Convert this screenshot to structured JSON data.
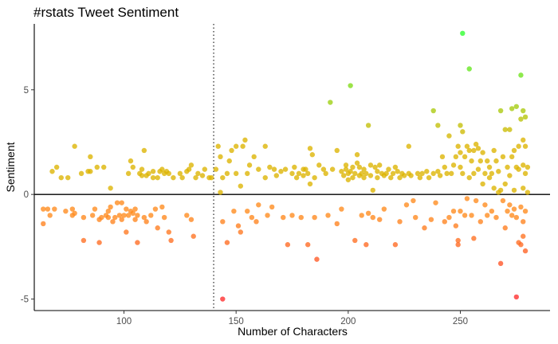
{
  "chart_data": {
    "type": "scatter",
    "title": "#rstats Tweet Sentiment",
    "xlabel": "Number of Characters",
    "ylabel": "Sentiment",
    "xlim": [
      60,
      290
    ],
    "ylim": [
      -5.55,
      8.15
    ],
    "x_ticks": [
      {
        "value": 100,
        "label": "100"
      },
      {
        "value": 150,
        "label": "150"
      },
      {
        "value": 200,
        "label": "200"
      },
      {
        "value": 250,
        "label": "250"
      }
    ],
    "y_ticks": [
      {
        "value": -5,
        "label": "-5"
      },
      {
        "value": 0,
        "label": "0"
      },
      {
        "value": 5,
        "label": "5"
      }
    ],
    "grid": false,
    "legend": "none",
    "reference_lines": {
      "horizontal_solid_y": 0,
      "vertical_dotted_x": 140
    },
    "color_scale": {
      "low": "#ff2b2b",
      "low_mid": "#ff8a1c",
      "mid": "#dcb400",
      "high": "#6fdb00",
      "top": "#2bff2b",
      "opacity": 0.78
    },
    "points": [
      [
        64,
        -1.4
      ],
      [
        64,
        -0.7
      ],
      [
        66,
        -0.7
      ],
      [
        67,
        -1.0
      ],
      [
        68,
        1.1
      ],
      [
        69,
        -0.7
      ],
      [
        70,
        1.3
      ],
      [
        72,
        0.8
      ],
      [
        74,
        -0.8
      ],
      [
        75,
        0.8
      ],
      [
        77,
        -0.7
      ],
      [
        77,
        -1.0
      ],
      [
        78,
        -0.9
      ],
      [
        78,
        2.3
      ],
      [
        81,
        1.0
      ],
      [
        82,
        -1.1
      ],
      [
        82,
        -2.2
      ],
      [
        84,
        1.1
      ],
      [
        85,
        1.1
      ],
      [
        85,
        1.8
      ],
      [
        86,
        -1.0
      ],
      [
        87,
        -0.7
      ],
      [
        88,
        1.3
      ],
      [
        89,
        -1.2
      ],
      [
        89,
        -2.3
      ],
      [
        90,
        -1.1
      ],
      [
        91,
        1.3
      ],
      [
        92,
        -1.0
      ],
      [
        93,
        -0.8
      ],
      [
        93,
        -1.1
      ],
      [
        94,
        0.3
      ],
      [
        94,
        -0.6
      ],
      [
        95,
        -1.3
      ],
      [
        96,
        -1.1
      ],
      [
        97,
        -0.4
      ],
      [
        98,
        -1.0
      ],
      [
        99,
        -1.2
      ],
      [
        99,
        -0.4
      ],
      [
        100,
        -1.0
      ],
      [
        101,
        -0.7
      ],
      [
        101,
        -1.8
      ],
      [
        102,
        -1.0
      ],
      [
        102,
        1.0
      ],
      [
        103,
        -0.8
      ],
      [
        103,
        1.6
      ],
      [
        104,
        -0.9
      ],
      [
        104,
        1.3
      ],
      [
        105,
        -0.7
      ],
      [
        105,
        -1.2
      ],
      [
        106,
        -1.0
      ],
      [
        106,
        -2.3
      ],
      [
        107,
        1.0
      ],
      [
        108,
        0.9
      ],
      [
        108,
        1.2
      ],
      [
        109,
        -1.1
      ],
      [
        109,
        2.1
      ],
      [
        110,
        0.9
      ],
      [
        110,
        -1.3
      ],
      [
        111,
        1.0
      ],
      [
        112,
        -1.0
      ],
      [
        113,
        0.8
      ],
      [
        113,
        1.1
      ],
      [
        114,
        -0.7
      ],
      [
        115,
        0.8
      ],
      [
        115,
        -1.6
      ],
      [
        116,
        1.1
      ],
      [
        117,
        1.2
      ],
      [
        117,
        -0.6
      ],
      [
        118,
        1.0
      ],
      [
        118,
        -1.1
      ],
      [
        119,
        1.1
      ],
      [
        120,
        1.0
      ],
      [
        120,
        -1.8
      ],
      [
        121,
        -2.2
      ],
      [
        122,
        0.8
      ],
      [
        125,
        1.0
      ],
      [
        126,
        0.8
      ],
      [
        128,
        -1.0
      ],
      [
        128,
        1.1
      ],
      [
        129,
        1.2
      ],
      [
        130,
        1.4
      ],
      [
        130,
        -1.2
      ],
      [
        131,
        -2.0
      ],
      [
        132,
        0.8
      ],
      [
        133,
        1.0
      ],
      [
        135,
        0.9
      ],
      [
        136,
        1.2
      ],
      [
        138,
        0.8
      ],
      [
        139,
        0.8
      ],
      [
        141,
        1.2
      ],
      [
        142,
        2.3
      ],
      [
        143,
        0.1
      ],
      [
        143,
        1.8
      ],
      [
        144,
        -1.3
      ],
      [
        144,
        0.8
      ],
      [
        144,
        -5.0
      ],
      [
        146,
        1.0
      ],
      [
        146,
        -2.3
      ],
      [
        147,
        1.6
      ],
      [
        148,
        2.1
      ],
      [
        149,
        -0.8
      ],
      [
        150,
        2.3
      ],
      [
        150,
        1.0
      ],
      [
        151,
        -1.5
      ],
      [
        152,
        0.4
      ],
      [
        152,
        -1.8
      ],
      [
        153,
        2.3
      ],
      [
        154,
        2.6
      ],
      [
        155,
        -0.8
      ],
      [
        155,
        1.0
      ],
      [
        156,
        1.4
      ],
      [
        157,
        -1.1
      ],
      [
        158,
        1.8
      ],
      [
        159,
        -1.3
      ],
      [
        160,
        1.2
      ],
      [
        160,
        -0.5
      ],
      [
        163,
        2.3
      ],
      [
        163,
        0.8
      ],
      [
        164,
        -1.0
      ],
      [
        165,
        1.3
      ],
      [
        166,
        -0.6
      ],
      [
        167,
        1.2
      ],
      [
        168,
        0.9
      ],
      [
        170,
        1.1
      ],
      [
        171,
        -1.1
      ],
      [
        172,
        1.2
      ],
      [
        173,
        -2.4
      ],
      [
        175,
        1.0
      ],
      [
        175,
        -1.0
      ],
      [
        176,
        1.3
      ],
      [
        177,
        0.8
      ],
      [
        178,
        1.0
      ],
      [
        179,
        -1.1
      ],
      [
        180,
        0.9
      ],
      [
        180,
        1.2
      ],
      [
        181,
        1.2
      ],
      [
        182,
        1.0
      ],
      [
        182,
        -2.4
      ],
      [
        183,
        2.2
      ],
      [
        183,
        0.5
      ],
      [
        184,
        1.9
      ],
      [
        185,
        0.8
      ],
      [
        185,
        -1.1
      ],
      [
        186,
        -3.1
      ],
      [
        187,
        1.4
      ],
      [
        189,
        1.2
      ],
      [
        190,
        1.0
      ],
      [
        191,
        -1.0
      ],
      [
        192,
        4.4
      ],
      [
        193,
        1.2
      ],
      [
        195,
        -1.4
      ],
      [
        195,
        2.1
      ],
      [
        197,
        1.1
      ],
      [
        197,
        -0.7
      ],
      [
        198,
        0.9
      ],
      [
        199,
        1.4
      ],
      [
        199,
        1.2
      ],
      [
        200,
        1.0
      ],
      [
        200,
        0.7
      ],
      [
        201,
        1.1
      ],
      [
        201,
        5.2
      ],
      [
        202,
        1.3
      ],
      [
        202,
        0.8
      ],
      [
        203,
        1.0
      ],
      [
        203,
        -2.2
      ],
      [
        204,
        1.5
      ],
      [
        204,
        1.9
      ],
      [
        205,
        0.9
      ],
      [
        205,
        1.3
      ],
      [
        206,
        1.0
      ],
      [
        206,
        -1.0
      ],
      [
        207,
        1.2
      ],
      [
        207,
        0.8
      ],
      [
        208,
        1.0
      ],
      [
        208,
        -2.4
      ],
      [
        209,
        3.3
      ],
      [
        209,
        -0.9
      ],
      [
        210,
        0.9
      ],
      [
        210,
        1.4
      ],
      [
        211,
        0.2
      ],
      [
        211,
        -1.1
      ],
      [
        212,
        1.3
      ],
      [
        213,
        0.8
      ],
      [
        213,
        1.1
      ],
      [
        214,
        1.4
      ],
      [
        214,
        -1.2
      ],
      [
        215,
        1.0
      ],
      [
        216,
        0.9
      ],
      [
        216,
        -0.7
      ],
      [
        217,
        1.0
      ],
      [
        218,
        1.2
      ],
      [
        219,
        0.8
      ],
      [
        220,
        1.0
      ],
      [
        221,
        1.3
      ],
      [
        221,
        -2.4
      ],
      [
        222,
        1.1
      ],
      [
        223,
        0.8
      ],
      [
        223,
        -1.3
      ],
      [
        224,
        1.0
      ],
      [
        225,
        0.9
      ],
      [
        226,
        -0.5
      ],
      [
        227,
        2.3
      ],
      [
        227,
        1.0
      ],
      [
        228,
        0.9
      ],
      [
        229,
        -0.3
      ],
      [
        230,
        -1.1
      ],
      [
        231,
        1.0
      ],
      [
        232,
        0.8
      ],
      [
        233,
        1.0
      ],
      [
        234,
        -1.6
      ],
      [
        235,
        1.1
      ],
      [
        236,
        0.8
      ],
      [
        237,
        -1.2
      ],
      [
        238,
        4.0
      ],
      [
        238,
        1.0
      ],
      [
        239,
        -0.4
      ],
      [
        240,
        3.3
      ],
      [
        240,
        1.1
      ],
      [
        241,
        0.9
      ],
      [
        242,
        1.8
      ],
      [
        243,
        1.3
      ],
      [
        243,
        -1.3
      ],
      [
        244,
        1.0
      ],
      [
        245,
        -1.1
      ],
      [
        245,
        2.8
      ],
      [
        246,
        1.0
      ],
      [
        247,
        -0.8
      ],
      [
        247,
        1.4
      ],
      [
        248,
        1.8
      ],
      [
        248,
        -1.5
      ],
      [
        249,
        2.3
      ],
      [
        249,
        -2.2
      ],
      [
        249,
        -2.4
      ],
      [
        250,
        3.3
      ],
      [
        250,
        1.3
      ],
      [
        250,
        2.0
      ],
      [
        250,
        -0.8
      ],
      [
        251,
        7.7
      ],
      [
        251,
        3.0
      ],
      [
        251,
        1.0
      ],
      [
        252,
        1.8
      ],
      [
        252,
        -1.0
      ],
      [
        253,
        2.3
      ],
      [
        253,
        -0.2
      ],
      [
        254,
        6.0
      ],
      [
        254,
        2.1
      ],
      [
        254,
        0.8
      ],
      [
        255,
        1.6
      ],
      [
        255,
        -1.0
      ],
      [
        256,
        2.1
      ],
      [
        256,
        1.0
      ],
      [
        256,
        -2.1
      ],
      [
        257,
        2.4
      ],
      [
        257,
        -0.3
      ],
      [
        258,
        1.2
      ],
      [
        258,
        2.2
      ],
      [
        259,
        1.6
      ],
      [
        259,
        -1.3
      ],
      [
        260,
        2.0
      ],
      [
        260,
        0.5
      ],
      [
        261,
        1.0
      ],
      [
        261,
        -0.5
      ],
      [
        262,
        1.6
      ],
      [
        262,
        -1.0
      ],
      [
        263,
        0.8
      ],
      [
        263,
        1.3
      ],
      [
        264,
        1.0
      ],
      [
        264,
        -0.8
      ],
      [
        265,
        2.1
      ],
      [
        265,
        0.3
      ],
      [
        266,
        1.6
      ],
      [
        266,
        -1.1
      ],
      [
        267,
        0.1
      ],
      [
        267,
        1.1
      ],
      [
        268,
        4.0
      ],
      [
        268,
        0.2
      ],
      [
        268,
        -3.3
      ],
      [
        269,
        1.8
      ],
      [
        269,
        -0.3
      ],
      [
        270,
        3.1
      ],
      [
        270,
        0.5
      ],
      [
        270,
        -1.6
      ],
      [
        271,
        1.3
      ],
      [
        271,
        -0.8
      ],
      [
        272,
        3.1
      ],
      [
        272,
        0.9
      ],
      [
        272,
        -0.5
      ],
      [
        273,
        4.1
      ],
      [
        273,
        1.8
      ],
      [
        273,
        -1.0
      ],
      [
        274,
        2.1
      ],
      [
        274,
        0.2
      ],
      [
        274,
        -0.7
      ],
      [
        275,
        4.2
      ],
      [
        275,
        1.3
      ],
      [
        275,
        -1.1
      ],
      [
        275,
        -4.9
      ],
      [
        276,
        2.3
      ],
      [
        276,
        1.2
      ],
      [
        276,
        -2.3
      ],
      [
        277,
        5.7
      ],
      [
        277,
        3.6
      ],
      [
        277,
        -0.6
      ],
      [
        277,
        -2.4
      ],
      [
        278,
        4.0
      ],
      [
        278,
        2.6
      ],
      [
        278,
        1.4
      ],
      [
        278,
        0.3
      ],
      [
        278,
        -1.3
      ],
      [
        278,
        -2.0
      ],
      [
        279,
        3.7
      ],
      [
        279,
        2.3
      ],
      [
        279,
        1.0
      ],
      [
        279,
        -0.8
      ],
      [
        279,
        -2.7
      ],
      [
        280,
        1.3
      ],
      [
        280,
        0.1
      ]
    ]
  }
}
